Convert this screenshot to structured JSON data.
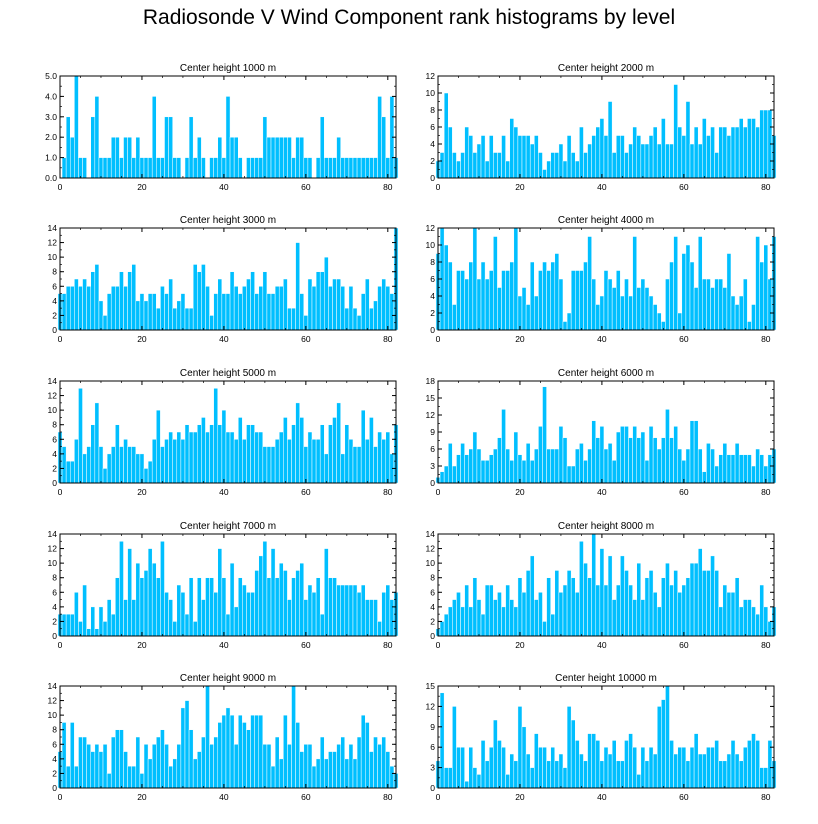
{
  "title": "Radiosonde V Wind Component rank histograms by level",
  "colors": {
    "bar": "#00bfff",
    "bar_edge": "#ffffff",
    "axis": "#000000"
  },
  "chart_data": [
    {
      "type": "bar",
      "title": "Center height 1000 m",
      "xlim": [
        0,
        82
      ],
      "xticks": [
        0,
        20,
        40,
        60,
        80
      ],
      "ylim": [
        0,
        5
      ],
      "yticks": [
        0,
        1,
        2,
        3,
        4,
        5
      ],
      "ytick_labels": [
        "0.0",
        "1.0",
        "2.0",
        "3.0",
        "4.0",
        "5.0"
      ],
      "values": [
        0,
        1,
        3,
        2,
        5,
        1,
        1,
        0,
        3,
        4,
        1,
        1,
        1,
        2,
        2,
        1,
        2,
        2,
        1,
        2,
        1,
        1,
        1,
        4,
        1,
        1,
        3,
        3,
        1,
        1,
        0,
        1,
        3,
        1,
        2,
        1,
        0,
        1,
        1,
        2,
        1,
        4,
        2,
        2,
        1,
        0,
        1,
        1,
        1,
        1,
        3,
        2,
        2,
        2,
        2,
        2,
        2,
        1,
        2,
        2,
        1,
        1,
        0,
        1,
        3,
        1,
        1,
        1,
        2,
        1,
        1,
        1,
        1,
        1,
        1,
        1,
        1,
        1,
        4,
        3,
        1,
        4,
        1
      ]
    },
    {
      "type": "bar",
      "title": "Center height 2000 m",
      "xlim": [
        0,
        82
      ],
      "xticks": [
        0,
        20,
        40,
        60,
        80
      ],
      "ylim": [
        0,
        12
      ],
      "yticks": [
        0,
        2,
        4,
        6,
        8,
        10,
        12
      ],
      "ytick_labels": [
        "0",
        "2",
        "4",
        "6",
        "8",
        "10",
        "12"
      ],
      "values": [
        2,
        3,
        10,
        6,
        3,
        2,
        3,
        6,
        5,
        3,
        4,
        5,
        2,
        5,
        3,
        3,
        5,
        2,
        7,
        6,
        5,
        5,
        5,
        4,
        5,
        3,
        1,
        2,
        3,
        3,
        4,
        2,
        5,
        3,
        2,
        6,
        3,
        4,
        5,
        6,
        7,
        5,
        9,
        3,
        5,
        5,
        3,
        4,
        6,
        5,
        4,
        4,
        5,
        6,
        4,
        7,
        4,
        4,
        11,
        6,
        5,
        9,
        4,
        6,
        4,
        7,
        5,
        6,
        3,
        6,
        6,
        5,
        6,
        6,
        7,
        6,
        7,
        7,
        6,
        8,
        8,
        8,
        5
      ]
    },
    {
      "type": "bar",
      "title": "Center height 3000 m",
      "xlim": [
        0,
        82
      ],
      "xticks": [
        0,
        20,
        40,
        60,
        80
      ],
      "ylim": [
        0,
        14
      ],
      "yticks": [
        0,
        2,
        4,
        6,
        8,
        10,
        12,
        14
      ],
      "ytick_labels": [
        "0",
        "2",
        "4",
        "6",
        "8",
        "10",
        "12",
        "14"
      ],
      "values": [
        5,
        5,
        6,
        6,
        7,
        6,
        7,
        6,
        8,
        9,
        4,
        2,
        5,
        6,
        6,
        8,
        6,
        8,
        9,
        4,
        5,
        4,
        5,
        5,
        3,
        6,
        5,
        7,
        3,
        4,
        5,
        3,
        3,
        9,
        8,
        9,
        6,
        2,
        5,
        7,
        5,
        5,
        8,
        6,
        5,
        6,
        7,
        8,
        5,
        6,
        8,
        5,
        5,
        6,
        6,
        7,
        3,
        3,
        12,
        5,
        2,
        7,
        6,
        8,
        8,
        10,
        6,
        7,
        7,
        6,
        3,
        6,
        3,
        2,
        5,
        7,
        3,
        4,
        6,
        7,
        6,
        5,
        14
      ]
    },
    {
      "type": "bar",
      "title": "Center height 4000 m",
      "xlim": [
        0,
        82
      ],
      "xticks": [
        0,
        20,
        40,
        60,
        80
      ],
      "ylim": [
        0,
        12
      ],
      "yticks": [
        0,
        2,
        4,
        6,
        8,
        10,
        12
      ],
      "ytick_labels": [
        "0",
        "2",
        "4",
        "6",
        "8",
        "10",
        "12"
      ],
      "values": [
        9,
        12,
        10,
        8,
        3,
        7,
        7,
        6,
        8,
        12,
        6,
        8,
        6,
        7,
        11,
        5,
        7,
        7,
        8,
        12,
        4,
        5,
        3,
        8,
        4,
        7,
        8,
        7,
        8,
        9,
        6,
        1,
        2,
        7,
        7,
        7,
        8,
        11,
        6,
        3,
        4,
        7,
        6,
        5,
        7,
        4,
        6,
        4,
        11,
        5,
        6,
        5,
        4,
        3,
        2,
        1,
        6,
        8,
        11,
        2,
        9,
        10,
        8,
        5,
        11,
        6,
        6,
        5,
        6,
        6,
        5,
        9,
        4,
        3,
        4,
        6,
        1,
        3,
        11,
        8,
        10,
        6,
        11
      ]
    },
    {
      "type": "bar",
      "title": "Center height 5000 m",
      "xlim": [
        0,
        82
      ],
      "xticks": [
        0,
        20,
        40,
        60,
        80
      ],
      "ylim": [
        0,
        14
      ],
      "yticks": [
        0,
        2,
        4,
        6,
        8,
        10,
        12,
        14
      ],
      "ytick_labels": [
        "0",
        "2",
        "4",
        "6",
        "8",
        "10",
        "12",
        "14"
      ],
      "values": [
        7,
        5,
        3,
        3,
        6,
        13,
        4,
        5,
        8,
        11,
        5,
        2,
        4,
        5,
        8,
        5,
        6,
        5,
        5,
        4,
        4,
        2,
        3,
        6,
        10,
        5,
        6,
        7,
        6,
        7,
        6,
        8,
        7,
        7,
        8,
        9,
        7,
        8,
        13,
        8,
        10,
        7,
        7,
        6,
        9,
        6,
        8,
        8,
        7,
        7,
        5,
        5,
        5,
        6,
        7,
        9,
        6,
        8,
        11,
        9,
        5,
        7,
        6,
        6,
        8,
        4,
        8,
        9,
        11,
        4,
        8,
        6,
        5,
        5,
        10,
        6,
        9,
        5,
        7,
        6,
        7,
        4,
        8
      ]
    },
    {
      "type": "bar",
      "title": "Center height 6000 m",
      "xlim": [
        0,
        82
      ],
      "xticks": [
        0,
        20,
        40,
        60,
        80
      ],
      "ylim": [
        0,
        18
      ],
      "yticks": [
        0,
        3,
        6,
        9,
        12,
        15,
        18
      ],
      "ytick_labels": [
        "0",
        "3",
        "6",
        "9",
        "12",
        "15",
        "18"
      ],
      "values": [
        1,
        2,
        3,
        7,
        3,
        5,
        7,
        5,
        6,
        9,
        6,
        4,
        4,
        5,
        6,
        8,
        13,
        6,
        4,
        9,
        5,
        4,
        7,
        4,
        6,
        10,
        17,
        6,
        6,
        6,
        10,
        8,
        3,
        3,
        6,
        7,
        4,
        6,
        11,
        8,
        10,
        6,
        7,
        4,
        9,
        10,
        10,
        8,
        10,
        8,
        9,
        4,
        10,
        8,
        6,
        8,
        13,
        8,
        10,
        6,
        4,
        6,
        11,
        11,
        6,
        2,
        7,
        6,
        3,
        5,
        7,
        5,
        5,
        7,
        5,
        5,
        5,
        3,
        6,
        5,
        3,
        5,
        6
      ]
    },
    {
      "type": "bar",
      "title": "Center height 7000 m",
      "xlim": [
        0,
        82
      ],
      "xticks": [
        0,
        20,
        40,
        60,
        80
      ],
      "ylim": [
        0,
        14
      ],
      "yticks": [
        0,
        2,
        4,
        6,
        8,
        10,
        12,
        14
      ],
      "ytick_labels": [
        "0",
        "2",
        "4",
        "6",
        "8",
        "10",
        "12",
        "14"
      ],
      "values": [
        3,
        3,
        3,
        3,
        6,
        2,
        7,
        1,
        4,
        1,
        4,
        2,
        5,
        3,
        8,
        13,
        5,
        12,
        5,
        10,
        8,
        9,
        12,
        10,
        8,
        13,
        6,
        5,
        2,
        7,
        6,
        3,
        8,
        2,
        8,
        5,
        8,
        8,
        6,
        12,
        8,
        3,
        10,
        4,
        8,
        7,
        6,
        6,
        9,
        11,
        13,
        8,
        12,
        8,
        10,
        9,
        5,
        8,
        9,
        10,
        5,
        7,
        6,
        8,
        3,
        12,
        8,
        8,
        7,
        7,
        7,
        7,
        7,
        6,
        7,
        5,
        5,
        5,
        2,
        6,
        7,
        5,
        6
      ]
    },
    {
      "type": "bar",
      "title": "Center height 8000 m",
      "xlim": [
        0,
        82
      ],
      "xticks": [
        0,
        20,
        40,
        60,
        80
      ],
      "ylim": [
        0,
        14
      ],
      "yticks": [
        0,
        2,
        4,
        6,
        8,
        10,
        12,
        14
      ],
      "ytick_labels": [
        "0",
        "2",
        "4",
        "6",
        "8",
        "10",
        "12",
        "14"
      ],
      "values": [
        1,
        2,
        3,
        4,
        5,
        6,
        4,
        7,
        4,
        8,
        5,
        3,
        7,
        7,
        5,
        6,
        4,
        7,
        5,
        4,
        8,
        6,
        9,
        11,
        5,
        6,
        2,
        8,
        3,
        9,
        6,
        7,
        9,
        8,
        6,
        13,
        10,
        8,
        14,
        7,
        12,
        7,
        11,
        5,
        7,
        11,
        9,
        7,
        5,
        10,
        5,
        8,
        9,
        6,
        4,
        8,
        10,
        7,
        9,
        6,
        7,
        8,
        10,
        10,
        12,
        9,
        9,
        11,
        9,
        4,
        7,
        6,
        6,
        8,
        4,
        5,
        5,
        4,
        3,
        7,
        4,
        2,
        4
      ]
    },
    {
      "type": "bar",
      "title": "Center height 9000 m",
      "xlim": [
        0,
        82
      ],
      "xticks": [
        0,
        20,
        40,
        60,
        80
      ],
      "ylim": [
        0,
        14
      ],
      "yticks": [
        0,
        2,
        4,
        6,
        8,
        10,
        12,
        14
      ],
      "ytick_labels": [
        "0",
        "2",
        "4",
        "6",
        "8",
        "10",
        "12",
        "14"
      ],
      "values": [
        5,
        9,
        3,
        9,
        3,
        7,
        7,
        6,
        5,
        6,
        5,
        6,
        2,
        7,
        8,
        8,
        5,
        3,
        3,
        7,
        2,
        6,
        4,
        6,
        7,
        8,
        6,
        3,
        4,
        6,
        11,
        12,
        8,
        4,
        5,
        7,
        14,
        6,
        7,
        9,
        10,
        11,
        10,
        6,
        10,
        9,
        8,
        10,
        10,
        10,
        6,
        6,
        3,
        7,
        4,
        10,
        6,
        14,
        9,
        5,
        6,
        6,
        3,
        4,
        7,
        4,
        5,
        5,
        6,
        7,
        4,
        6,
        4,
        7,
        10,
        9,
        5,
        7,
        6,
        7,
        5,
        3,
        2
      ]
    },
    {
      "type": "bar",
      "title": "Center height 10000 m",
      "xlim": [
        0,
        82
      ],
      "xticks": [
        0,
        20,
        40,
        60,
        80
      ],
      "ylim": [
        0,
        15
      ],
      "yticks": [
        0,
        3,
        6,
        9,
        12,
        15
      ],
      "ytick_labels": [
        "0",
        "3",
        "6",
        "9",
        "12",
        "15"
      ],
      "values": [
        4,
        14,
        3,
        3,
        12,
        6,
        6,
        1,
        6,
        3,
        2,
        7,
        4,
        6,
        10,
        7,
        6,
        2,
        5,
        4,
        12,
        9,
        5,
        3,
        8,
        6,
        6,
        4,
        6,
        4,
        5,
        3,
        12,
        10,
        7,
        5,
        4,
        8,
        8,
        7,
        4,
        6,
        5,
        7,
        4,
        4,
        7,
        8,
        6,
        2,
        6,
        4,
        6,
        5,
        12,
        13,
        15,
        7,
        5,
        6,
        6,
        4,
        6,
        8,
        5,
        5,
        6,
        6,
        7,
        4,
        4,
        5,
        7,
        5,
        4,
        6,
        7,
        8,
        7,
        3,
        3,
        7,
        4
      ]
    }
  ]
}
